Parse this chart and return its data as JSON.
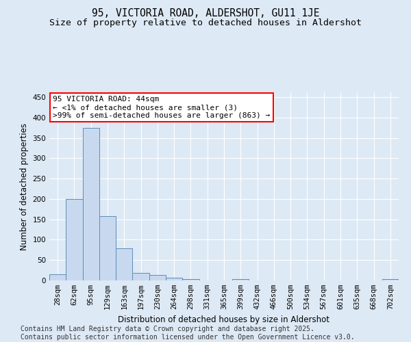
{
  "title": "95, VICTORIA ROAD, ALDERSHOT, GU11 1JE",
  "subtitle": "Size of property relative to detached houses in Aldershot",
  "xlabel": "Distribution of detached houses by size in Aldershot",
  "ylabel": "Number of detached properties",
  "footer_line1": "Contains HM Land Registry data © Crown copyright and database right 2025.",
  "footer_line2": "Contains public sector information licensed under the Open Government Licence v3.0.",
  "categories": [
    "28sqm",
    "62sqm",
    "95sqm",
    "129sqm",
    "163sqm",
    "197sqm",
    "230sqm",
    "264sqm",
    "298sqm",
    "331sqm",
    "365sqm",
    "399sqm",
    "432sqm",
    "466sqm",
    "500sqm",
    "534sqm",
    "567sqm",
    "601sqm",
    "635sqm",
    "668sqm",
    "702sqm"
  ],
  "values": [
    15,
    200,
    375,
    158,
    79,
    19,
    13,
    6,
    4,
    0,
    0,
    3,
    0,
    0,
    0,
    0,
    0,
    0,
    0,
    0,
    3
  ],
  "bar_color": "#c8d9ef",
  "bar_edge_color": "#5b8db8",
  "annotation_line1": "95 VICTORIA ROAD: 44sqm",
  "annotation_line2": "← <1% of detached houses are smaller (3)",
  "annotation_line3": ">99% of semi-detached houses are larger (863) →",
  "annotation_box_color": "white",
  "annotation_box_edge_color": "red",
  "ylim": [
    0,
    462
  ],
  "yticks": [
    0,
    50,
    100,
    150,
    200,
    250,
    300,
    350,
    400,
    450
  ],
  "grid_color": "#c8d9ef",
  "bg_color": "#dde9f5",
  "title_fontsize": 10.5,
  "subtitle_fontsize": 9.5,
  "axis_label_fontsize": 8.5,
  "tick_fontsize": 7.5,
  "footer_fontsize": 7.0,
  "annotation_fontsize": 8.0
}
